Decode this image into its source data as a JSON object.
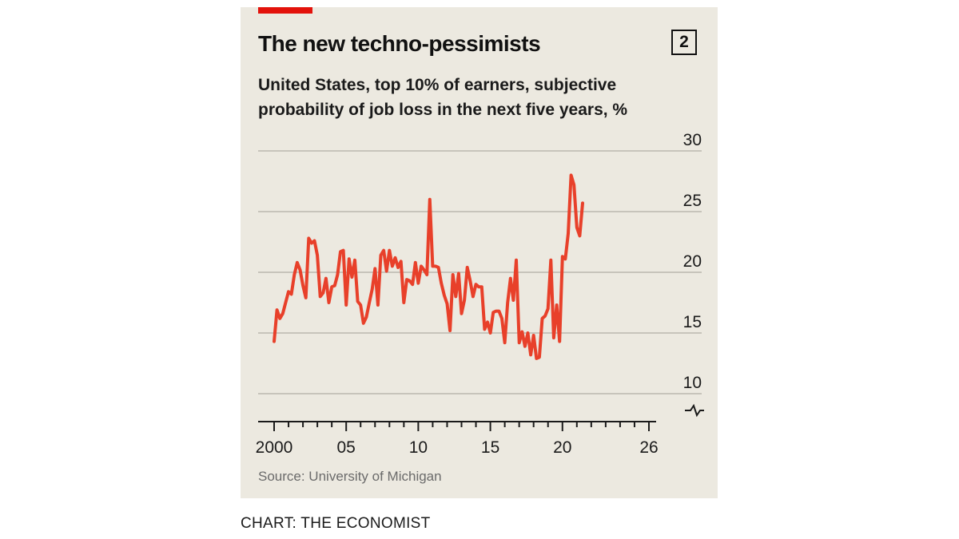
{
  "header": {
    "title": "The new techno-pessimists",
    "badge": "2",
    "subtitle": "United States, top 10% of earners, subjective probability of job loss in the next five years, %"
  },
  "footer": {
    "source": "Source: University of Michigan",
    "credit": "CHART: THE ECONOMIST"
  },
  "colors": {
    "panel": "#ece9e0",
    "accent": "#e3120b",
    "line": "#e8402a",
    "grid": "#c7c4bb"
  },
  "chart_data": {
    "type": "line",
    "title": "The new techno-pessimists",
    "subtitle": "United States, top 10% of earners, subjective probability of job loss in the next five years, %",
    "xlabel": "",
    "ylabel": "",
    "xlim": [
      2000,
      2026
    ],
    "ylim": [
      10,
      30
    ],
    "axis_break": true,
    "y_axis_position": "right",
    "grid": true,
    "x_ticks": [
      2000,
      2005,
      2010,
      2015,
      2020,
      2026
    ],
    "x_tick_labels": [
      "2000",
      "05",
      "10",
      "15",
      "20",
      "26"
    ],
    "y_ticks": [
      10,
      15,
      20,
      25,
      30
    ],
    "y_tick_labels": [
      "10",
      "15",
      "20",
      "25",
      "30"
    ],
    "series": [
      {
        "values": [
          [
            2000.0,
            14.3
          ],
          [
            2000.2,
            16.9
          ],
          [
            2000.4,
            16.2
          ],
          [
            2000.6,
            16.6
          ],
          [
            2000.8,
            17.5
          ],
          [
            2001.0,
            18.4
          ],
          [
            2001.2,
            18.2
          ],
          [
            2001.4,
            19.8
          ],
          [
            2001.6,
            20.8
          ],
          [
            2001.8,
            20.2
          ],
          [
            2002.0,
            18.9
          ],
          [
            2002.2,
            17.9
          ],
          [
            2002.4,
            22.8
          ],
          [
            2002.6,
            22.4
          ],
          [
            2002.8,
            22.6
          ],
          [
            2003.0,
            21.4
          ],
          [
            2003.2,
            18.0
          ],
          [
            2003.4,
            18.3
          ],
          [
            2003.6,
            19.5
          ],
          [
            2003.8,
            17.5
          ],
          [
            2004.0,
            18.8
          ],
          [
            2004.2,
            18.9
          ],
          [
            2004.4,
            19.8
          ],
          [
            2004.6,
            21.7
          ],
          [
            2004.8,
            21.8
          ],
          [
            2005.0,
            17.3
          ],
          [
            2005.2,
            21.1
          ],
          [
            2005.4,
            19.6
          ],
          [
            2005.6,
            21.0
          ],
          [
            2005.8,
            17.6
          ],
          [
            2006.0,
            17.3
          ],
          [
            2006.2,
            15.8
          ],
          [
            2006.4,
            16.3
          ],
          [
            2006.6,
            17.5
          ],
          [
            2006.8,
            18.6
          ],
          [
            2007.0,
            20.3
          ],
          [
            2007.2,
            17.3
          ],
          [
            2007.4,
            21.4
          ],
          [
            2007.6,
            21.8
          ],
          [
            2007.8,
            20.1
          ],
          [
            2008.0,
            21.8
          ],
          [
            2008.2,
            20.5
          ],
          [
            2008.4,
            21.2
          ],
          [
            2008.6,
            20.4
          ],
          [
            2008.8,
            20.9
          ],
          [
            2009.0,
            17.5
          ],
          [
            2009.2,
            19.4
          ],
          [
            2009.4,
            19.3
          ],
          [
            2009.6,
            19.0
          ],
          [
            2009.8,
            20.8
          ],
          [
            2010.0,
            19.1
          ],
          [
            2010.2,
            20.5
          ],
          [
            2010.4,
            20.2
          ],
          [
            2010.6,
            19.8
          ],
          [
            2010.8,
            26.0
          ],
          [
            2011.0,
            20.5
          ],
          [
            2011.2,
            20.5
          ],
          [
            2011.4,
            20.4
          ],
          [
            2011.6,
            19.1
          ],
          [
            2011.8,
            18.1
          ],
          [
            2012.0,
            17.4
          ],
          [
            2012.2,
            15.2
          ],
          [
            2012.4,
            19.8
          ],
          [
            2012.6,
            18.0
          ],
          [
            2012.8,
            19.9
          ],
          [
            2013.0,
            16.6
          ],
          [
            2013.2,
            17.7
          ],
          [
            2013.4,
            20.4
          ],
          [
            2013.6,
            19.3
          ],
          [
            2013.8,
            18.0
          ],
          [
            2014.0,
            19.0
          ],
          [
            2014.2,
            18.8
          ],
          [
            2014.4,
            18.8
          ],
          [
            2014.6,
            15.3
          ],
          [
            2014.8,
            15.9
          ],
          [
            2015.0,
            15.0
          ],
          [
            2015.2,
            16.7
          ],
          [
            2015.4,
            16.8
          ],
          [
            2015.6,
            16.8
          ],
          [
            2015.8,
            16.2
          ],
          [
            2016.0,
            14.2
          ],
          [
            2016.2,
            17.5
          ],
          [
            2016.4,
            19.5
          ],
          [
            2016.6,
            17.7
          ],
          [
            2016.8,
            21.0
          ],
          [
            2017.0,
            14.2
          ],
          [
            2017.2,
            15.1
          ],
          [
            2017.4,
            13.9
          ],
          [
            2017.6,
            15.0
          ],
          [
            2017.8,
            13.2
          ],
          [
            2018.0,
            14.8
          ],
          [
            2018.2,
            12.9
          ],
          [
            2018.4,
            13.0
          ],
          [
            2018.6,
            16.2
          ],
          [
            2018.8,
            16.4
          ],
          [
            2019.0,
            17.0
          ],
          [
            2019.2,
            21.0
          ],
          [
            2019.4,
            14.6
          ],
          [
            2019.6,
            17.3
          ],
          [
            2019.8,
            14.3
          ],
          [
            2020.0,
            21.3
          ],
          [
            2020.2,
            21.1
          ],
          [
            2020.4,
            23.2
          ],
          [
            2020.6,
            28.0
          ],
          [
            2020.8,
            27.2
          ],
          [
            2021.0,
            23.7
          ],
          [
            2021.2,
            23.0
          ],
          [
            2021.4,
            25.7
          ]
        ]
      }
    ]
  }
}
